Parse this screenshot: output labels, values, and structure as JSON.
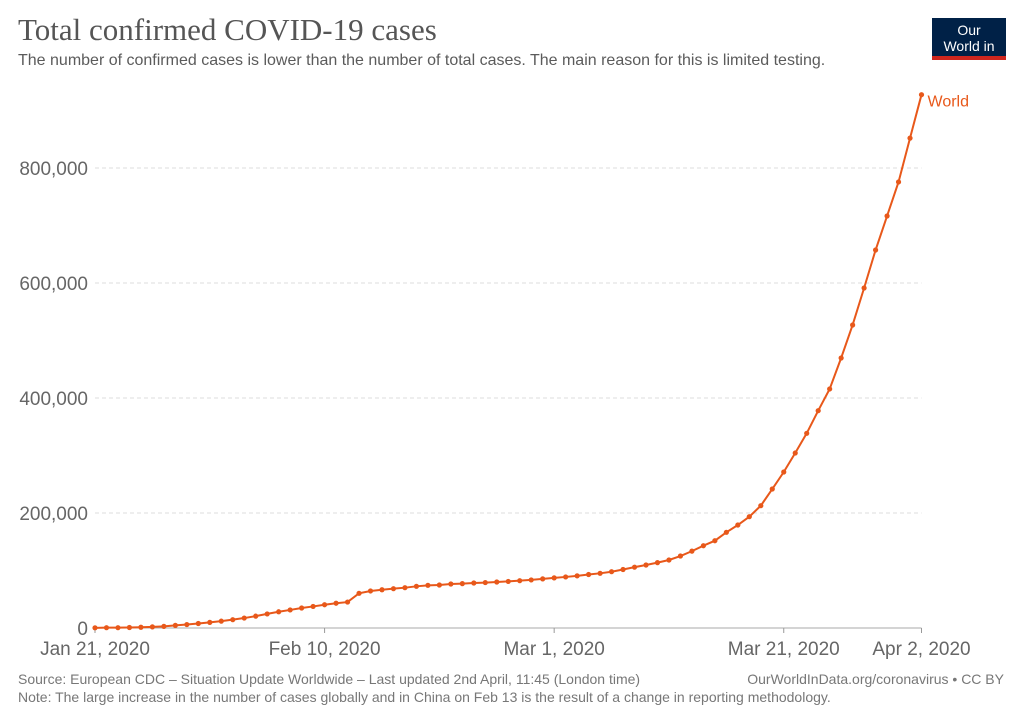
{
  "header": {
    "title": "Total confirmed COVID-19 cases",
    "subtitle": "The number of confirmed cases is lower than the number of total cases. The main reason for this is limited testing.",
    "logo_text": "Our World in Data"
  },
  "footer": {
    "source": "Source: European CDC – Situation Update Worldwide – Last updated 2nd April, 11:45 (London time)",
    "link": "OurWorldInData.org/coronavirus • CC BY",
    "note": "Note: The large increase in the number of cases globally and in China on Feb 13 is the result of a change in reporting methodology."
  },
  "chart_data": {
    "type": "line",
    "title": "Total confirmed COVID-19 cases",
    "xlabel": "",
    "ylabel": "",
    "ylim": [
      0,
      930000
    ],
    "xlim": [
      "2020-01-21",
      "2020-04-02"
    ],
    "grid": "horizontal dashed",
    "legend": "line-end label",
    "y_ticks": [
      0,
      200000,
      400000,
      600000,
      800000
    ],
    "y_tick_labels": [
      "0",
      "200,000",
      "400,000",
      "600,000",
      "800,000"
    ],
    "x_ticks": [
      "2020-01-21",
      "2020-02-10",
      "2020-03-01",
      "2020-03-21",
      "2020-04-02"
    ],
    "x_tick_labels": [
      "Jan 21, 2020",
      "Feb 10, 2020",
      "Mar 1, 2020",
      "Mar 21, 2020",
      "Apr 2, 2020"
    ],
    "colors": {
      "World": "#e8581a"
    },
    "series": [
      {
        "name": "World",
        "start_date": "2020-01-21",
        "values": [
          300,
          550,
          580,
          850,
          1300,
          2000,
          2800,
          4600,
          6000,
          7800,
          9800,
          11900,
          14500,
          17300,
          20600,
          24500,
          28200,
          31400,
          34800,
          37500,
          40500,
          43100,
          45100,
          60300,
          64400,
          66500,
          68400,
          70100,
          72500,
          74200,
          74800,
          76500,
          77200,
          78300,
          79000,
          80000,
          81000,
          82300,
          83600,
          85400,
          87200,
          88800,
          90700,
          93000,
          95100,
          97900,
          101700,
          105800,
          109600,
          113700,
          118300,
          125200,
          133700,
          143100,
          151800,
          166400,
          179100,
          193600,
          212700,
          241700,
          271300,
          304300,
          338600,
          377900,
          415700,
          469600,
          527000,
          591300,
          657400,
          716500,
          775700,
          852000,
          927500
        ]
      }
    ]
  }
}
